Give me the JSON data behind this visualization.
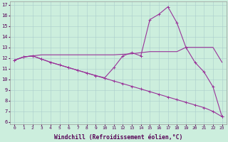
{
  "xlabel": "Windchill (Refroidissement éolien,°C)",
  "x": [
    0,
    1,
    2,
    3,
    4,
    5,
    6,
    7,
    8,
    9,
    10,
    11,
    12,
    13,
    14,
    15,
    16,
    17,
    18,
    19,
    20,
    21,
    22,
    23
  ],
  "line_diag": [
    11.8,
    12.1,
    12.2,
    11.9,
    11.6,
    11.35,
    11.1,
    10.85,
    10.6,
    10.35,
    10.1,
    9.85,
    9.6,
    9.35,
    9.1,
    8.85,
    8.6,
    8.35,
    8.1,
    7.85,
    7.6,
    7.35,
    7.0,
    6.5
  ],
  "line_spike": [
    11.8,
    12.1,
    12.2,
    11.9,
    11.6,
    11.35,
    11.1,
    10.85,
    10.6,
    10.35,
    10.15,
    11.1,
    12.2,
    12.5,
    12.2,
    15.6,
    16.1,
    16.8,
    15.3,
    13.0,
    11.6,
    10.7,
    9.3,
    6.5
  ],
  "line_flat": [
    11.8,
    12.1,
    12.2,
    12.3,
    12.3,
    12.3,
    12.3,
    12.3,
    12.3,
    12.3,
    12.3,
    12.3,
    12.35,
    12.4,
    12.5,
    12.6,
    12.6,
    12.6,
    12.6,
    13.0,
    13.0,
    13.0,
    13.0,
    11.6
  ],
  "line_color": "#993399",
  "bg_color": "#cceedd",
  "grid_color": "#aacccc",
  "ylim_min": 5.8,
  "ylim_max": 17.3,
  "yticks": [
    6,
    7,
    8,
    9,
    10,
    11,
    12,
    13,
    14,
    15,
    16,
    17
  ]
}
